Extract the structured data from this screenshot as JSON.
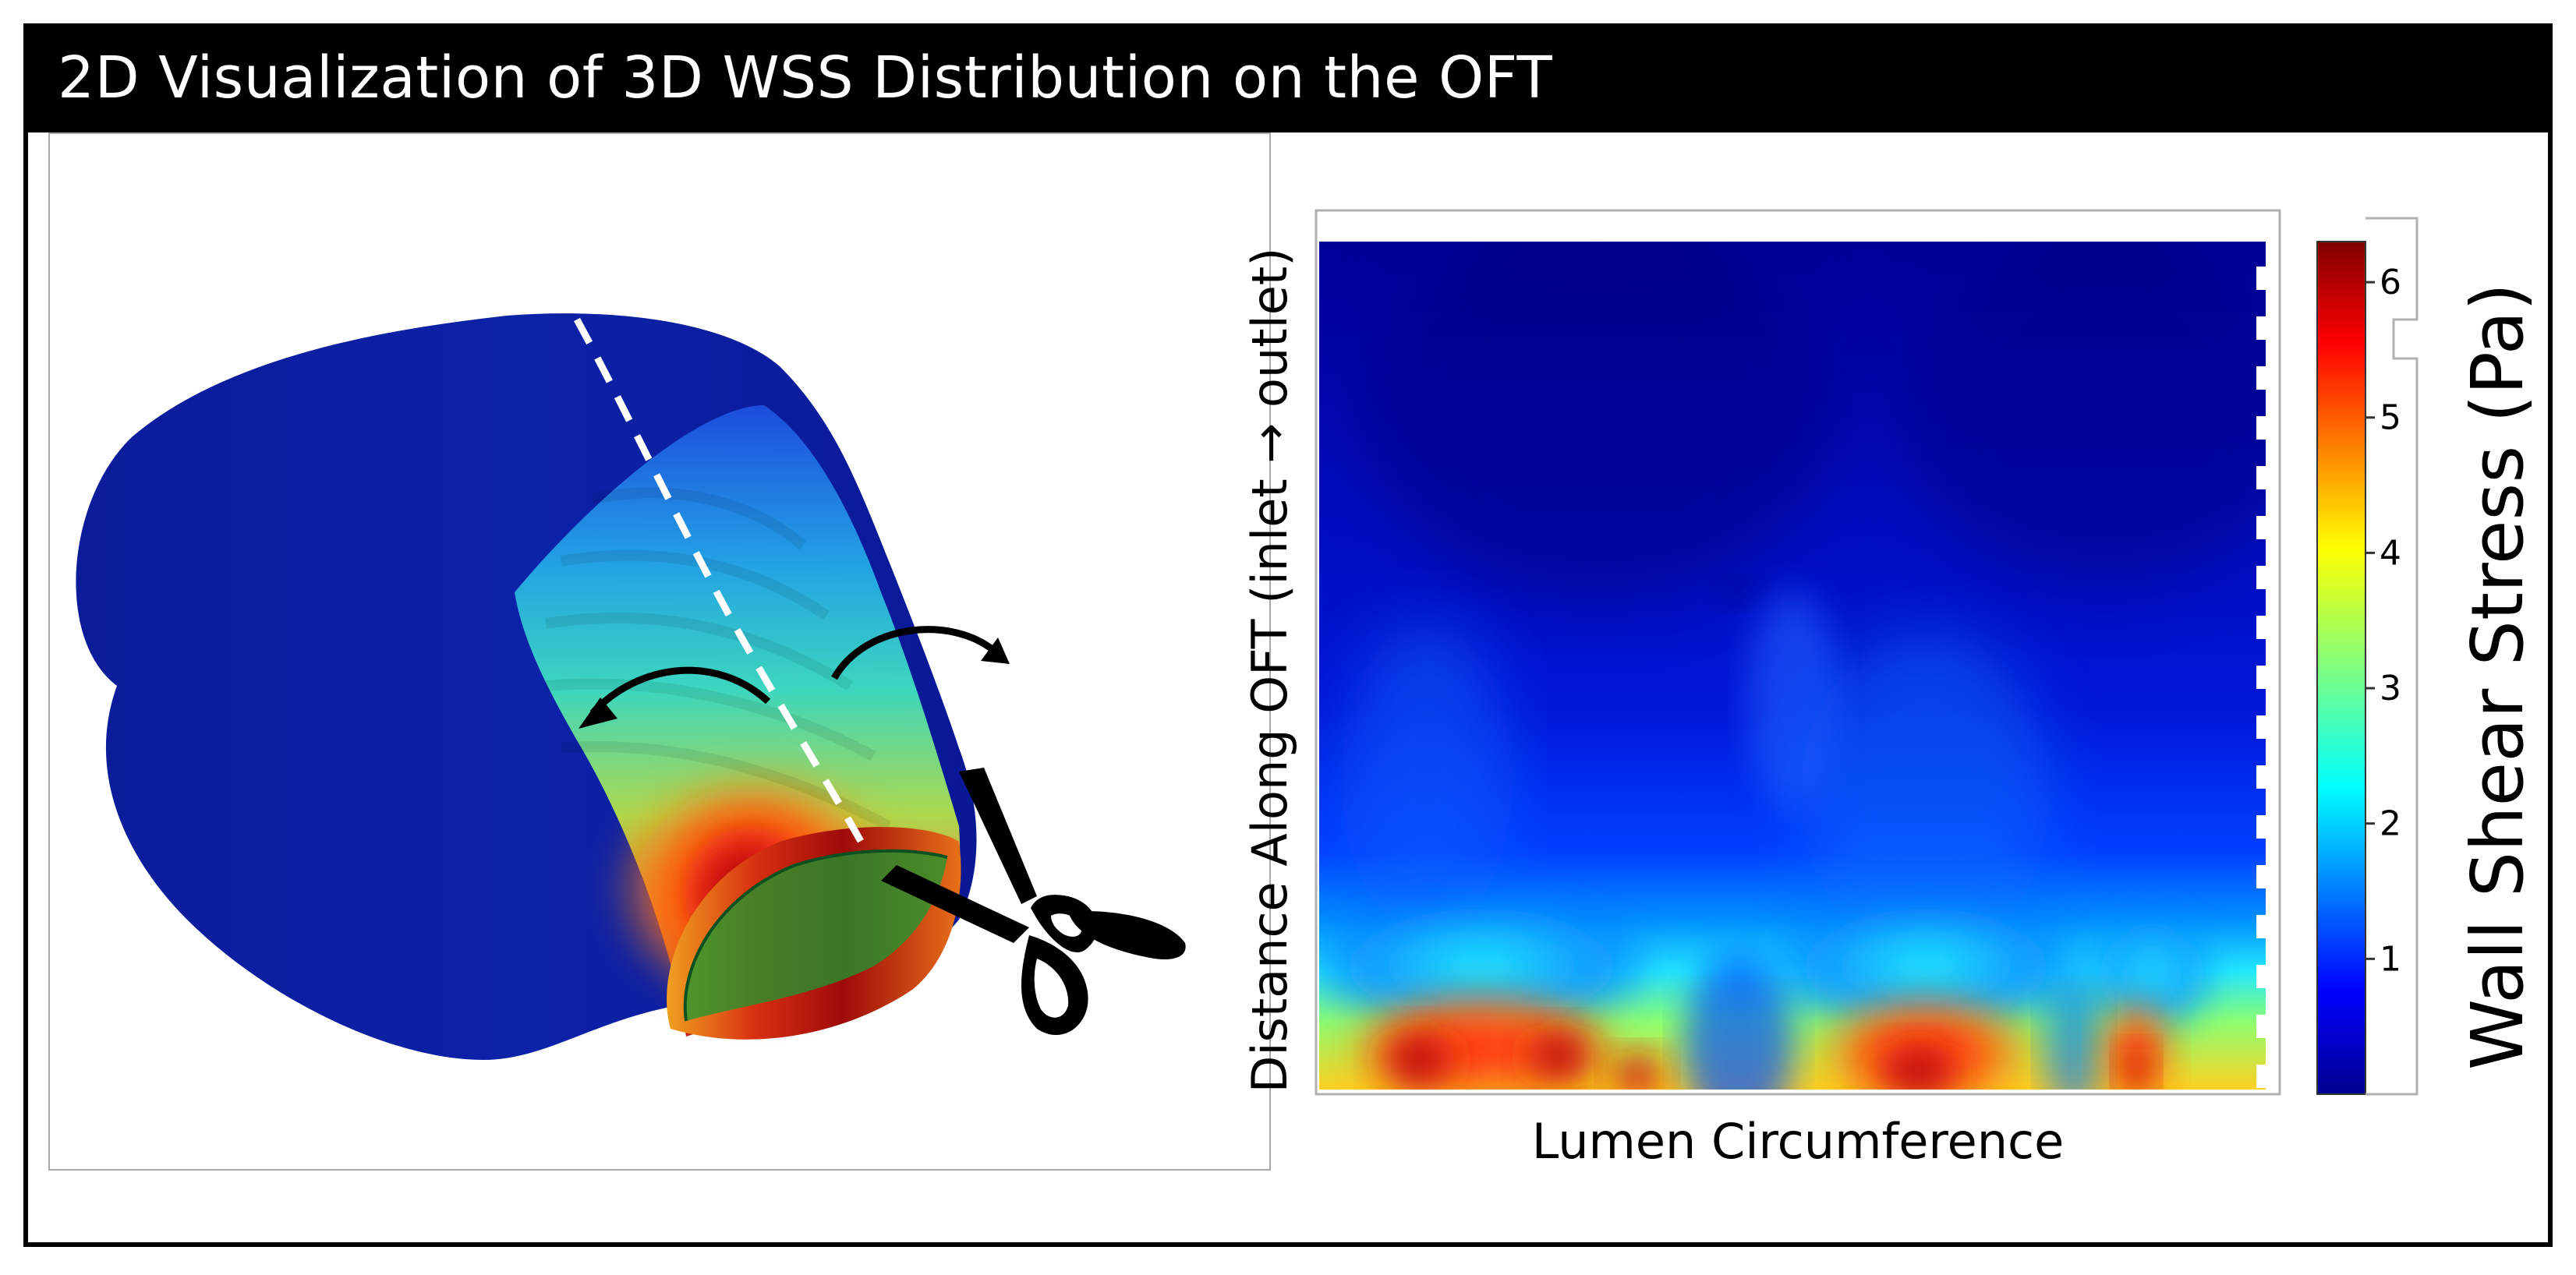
{
  "title": "2D Visualization of 3D WSS Distribution on the OFT",
  "heatmap": {
    "xlabel": "Lumen Circumference",
    "ylabel": "Distance Along OFT (inlet → outlet)",
    "colorbar": {
      "label": "Wall Shear Stress (Pa)",
      "ticks": [
        "1",
        "2",
        "3",
        "4",
        "5",
        "6"
      ]
    }
  },
  "chart_data": {
    "type": "heatmap",
    "xlabel": "Lumen Circumference",
    "ylabel": "Distance Along OFT (inlet → outlet)",
    "colorbar_label": "Wall Shear Stress (Pa)",
    "colorbar_ticks": [
      1,
      2,
      3,
      4,
      5,
      6
    ],
    "zlim": [
      0,
      6.3
    ],
    "colormap": "jet"
  },
  "colors": {
    "title_bar": "#000000",
    "title_text": "#ffffff",
    "low": "#00008f",
    "high": "#800000"
  }
}
